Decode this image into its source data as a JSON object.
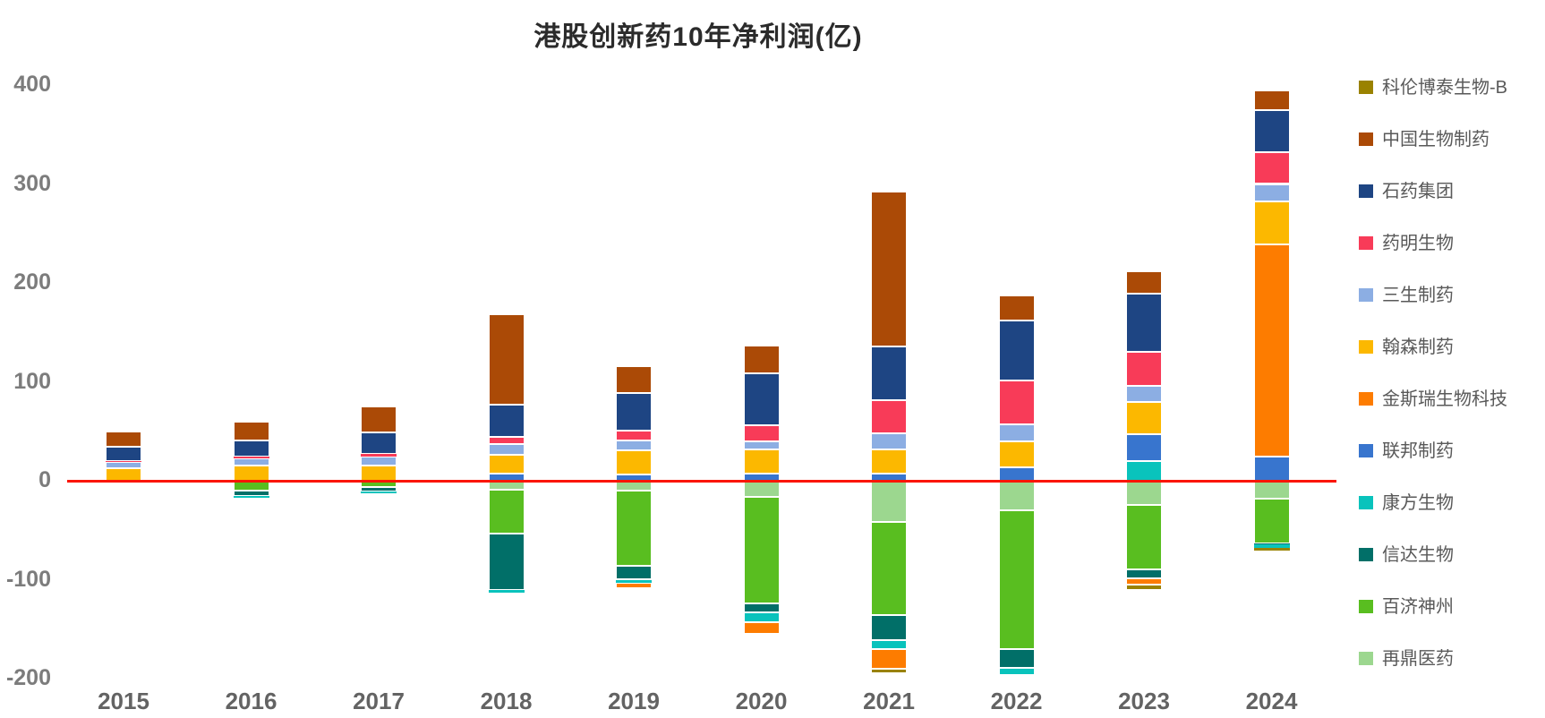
{
  "title": "港股创新药10年净利润(亿)",
  "zero_line_color": "#fb1505",
  "chart_data": {
    "type": "bar",
    "stacked": true,
    "title": "港股创新药10年净利润(亿)",
    "xlabel": "",
    "ylabel": "",
    "categories": [
      "2015",
      "2016",
      "2017",
      "2018",
      "2019",
      "2020",
      "2021",
      "2022",
      "2023",
      "2024"
    ],
    "yticks": [
      400,
      300,
      200,
      100,
      0,
      -100,
      -200
    ],
    "ylim": [
      -220,
      420
    ],
    "grid": false,
    "legend_position": "right",
    "zero_line": true,
    "series": [
      {
        "name": "科伦博泰生物-B",
        "color": "#9a8200",
        "values": [
          0,
          0,
          0,
          0,
          0,
          0,
          -5,
          0,
          -5,
          -2.5
        ]
      },
      {
        "name": "中国生物制药",
        "color": "#ab4a06",
        "values": [
          16,
          19,
          26,
          91,
          27,
          28,
          156,
          25,
          23,
          20
        ]
      },
      {
        "name": "石药集团",
        "color": "#1e4583",
        "values": [
          14,
          16,
          22,
          33,
          38,
          53,
          55,
          61,
          59,
          43
        ]
      },
      {
        "name": "药明生物",
        "color": "#f83b58",
        "values": [
          1,
          1.5,
          3,
          7,
          10,
          16,
          33,
          44,
          34,
          32
        ]
      },
      {
        "name": "三生制药",
        "color": "#8caee3",
        "values": [
          6,
          8,
          9,
          11,
          10,
          8,
          16,
          17,
          16,
          18
        ]
      },
      {
        "name": "翰森制药",
        "color": "#fcb800",
        "values": [
          13,
          15,
          15,
          19,
          25,
          25,
          25,
          26,
          33,
          43
        ]
      },
      {
        "name": "金斯瑞生物科技",
        "color": "#fd7c00",
        "values": [
          0,
          0,
          0,
          0,
          -6,
          -12,
          -20,
          0,
          -6,
          215
        ]
      },
      {
        "name": "联邦制药",
        "color": "#3875ce",
        "values": [
          0,
          0,
          0,
          7,
          6,
          7,
          7,
          14,
          27,
          24
        ]
      },
      {
        "name": "康方生物",
        "color": "#09c3bc",
        "values": [
          0,
          -2,
          -2,
          -3,
          -3,
          -10,
          -9,
          -7,
          20,
          -4
        ]
      },
      {
        "name": "信达生物",
        "color": "#016f68",
        "values": [
          0,
          -5,
          -5,
          -57,
          -14,
          -9,
          -25,
          -19,
          -9,
          -1
        ]
      },
      {
        "name": "百济神州",
        "color": "#59be20",
        "values": [
          0,
          -9,
          -6,
          -44,
          -76,
          -108,
          -94,
          -140,
          -66,
          -45
        ]
      },
      {
        "name": "再鼎医药",
        "color": "#9cd78f",
        "values": [
          0,
          -1,
          0,
          -9,
          -10,
          -16,
          -42,
          -30,
          -24,
          -18
        ]
      }
    ]
  }
}
